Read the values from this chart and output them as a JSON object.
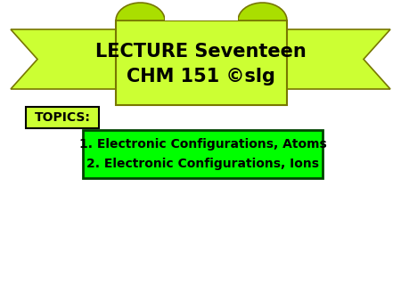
{
  "title_line1": "LECTURE Seventeen",
  "title_line2": "CHM 151 ©slg",
  "topics_label": "TOPICS:",
  "topic1": "1. Electronic Configurations, Atoms",
  "topic2": "2. Electronic Configurations, Ions",
  "banner_color": "#CCFF33",
  "banner_dark_color": "#AADE00",
  "topics_box_color": "#CCFF33",
  "topics_content_color": "#00FF00",
  "bg_color": "#FFFFFF",
  "title_fontsize": 15,
  "topics_fontsize": 10,
  "topics_label_fontsize": 10
}
